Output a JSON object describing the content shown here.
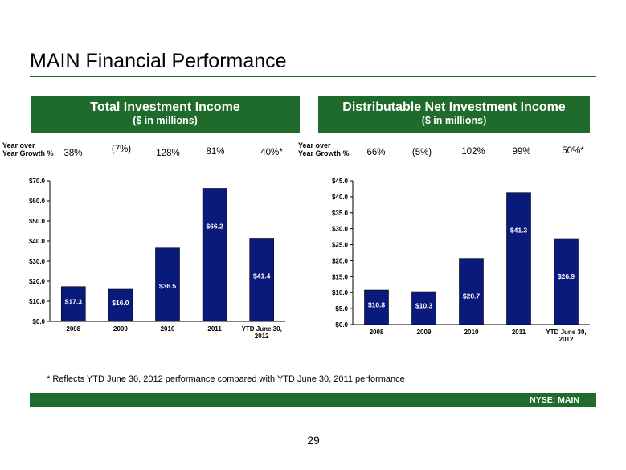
{
  "page": {
    "title": "MAIN Financial Performance",
    "footnote": "* Reflects YTD June 30, 2012 performance compared with YTD June 30, 2011 performance",
    "footer": "NYSE: MAIN",
    "page_number": "29",
    "accent_color": "#1e6b2b",
    "bar_color": "#0a1a7a"
  },
  "panels": [
    {
      "title": "Total Investment Income",
      "subtitle": "($ in millions)",
      "yoy_label_line1": "Year over",
      "yoy_label_line2": "Year Growth %",
      "growth": [
        "38%",
        "(7%)",
        "128%",
        "81%",
        "40%*"
      ]
    },
    {
      "title": "Distributable Net Investment Income",
      "subtitle": "($ in millions)",
      "yoy_label_line1": "Year over",
      "yoy_label_line2": "Year Growth %",
      "growth": [
        "66%",
        "(5%)",
        "102%",
        "99%",
        "50%*"
      ]
    }
  ],
  "chart_data": [
    {
      "type": "bar",
      "title": "Total Investment Income",
      "categories": [
        "2008",
        "2009",
        "2010",
        "2011",
        "YTD June 30, 2012"
      ],
      "category_lines": [
        [
          "2008"
        ],
        [
          "2009"
        ],
        [
          "2010"
        ],
        [
          "2011"
        ],
        [
          "YTD June 30,",
          "2012"
        ]
      ],
      "values": [
        17.3,
        16.0,
        36.5,
        66.2,
        41.4
      ],
      "data_labels": [
        "$17.3",
        "$16.0",
        "$36.5",
        "$66.2",
        "$41.4"
      ],
      "yticks": [
        0,
        10,
        20,
        30,
        40,
        50,
        60,
        70
      ],
      "ytick_labels": [
        "$0.0",
        "$10.0",
        "$20.0",
        "$30.0",
        "$40.0",
        "$50.0",
        "$60.0",
        "$70.0"
      ],
      "ylim": [
        0,
        70
      ],
      "grid": false,
      "legend": "none"
    },
    {
      "type": "bar",
      "title": "Distributable Net Investment Income",
      "categories": [
        "2008",
        "2009",
        "2010",
        "2011",
        "YTD June 30, 2012"
      ],
      "category_lines": [
        [
          "2008"
        ],
        [
          "2009"
        ],
        [
          "2010"
        ],
        [
          "2011"
        ],
        [
          "YTD June 30,",
          "2012"
        ]
      ],
      "values": [
        10.8,
        10.3,
        20.7,
        41.3,
        26.9
      ],
      "data_labels": [
        "$10.8",
        "$10.3",
        "$20.7",
        "$41.3",
        "$26.9"
      ],
      "yticks": [
        0,
        5,
        10,
        15,
        20,
        25,
        30,
        35,
        40,
        45
      ],
      "ytick_labels": [
        "$0.0",
        "$5.0",
        "$10.0",
        "$15.0",
        "$20.0",
        "$25.0",
        "$30.0",
        "$35.0",
        "$40.0",
        "$45.0"
      ],
      "ylim": [
        0,
        45
      ],
      "grid": false,
      "legend": "none"
    }
  ]
}
